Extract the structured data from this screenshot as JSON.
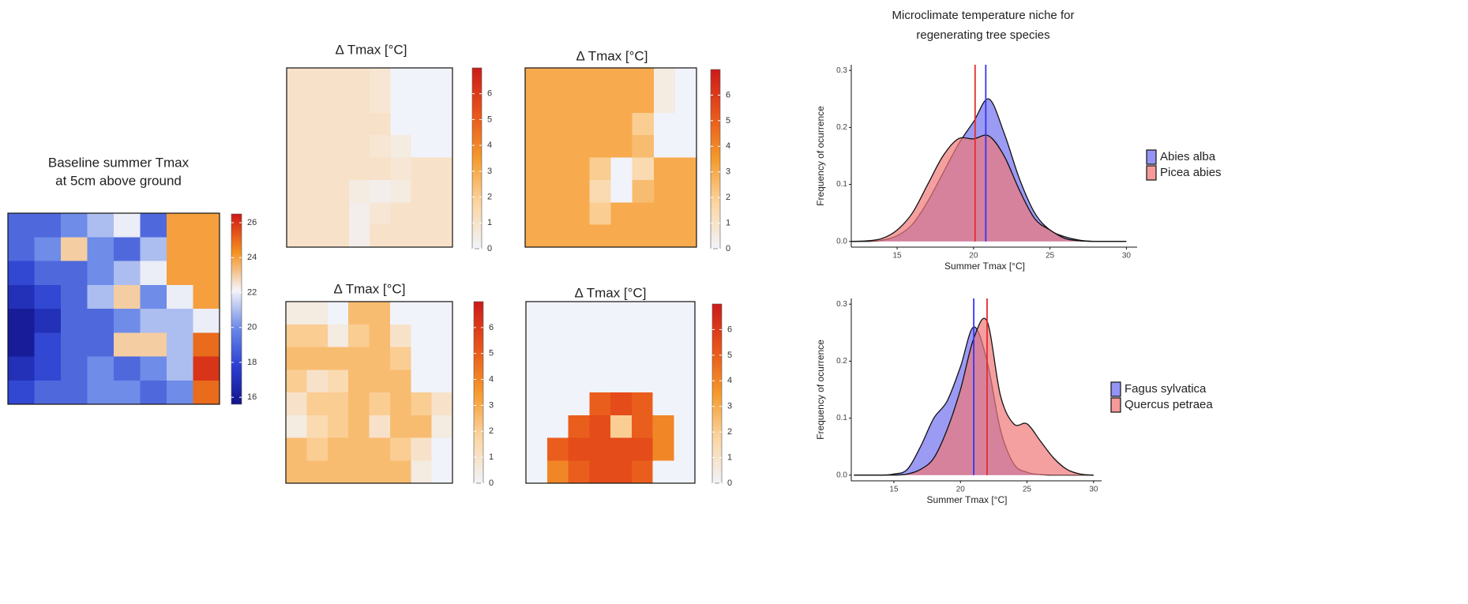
{
  "chart_data": [
    {
      "type": "heatmap",
      "title": [
        "Baseline summer Tmax",
        "at 5cm above ground"
      ],
      "z": [
        [
          19,
          19,
          20,
          21,
          22,
          19,
          24,
          24
        ],
        [
          19,
          20,
          23,
          20,
          19,
          21,
          24,
          24
        ],
        [
          18,
          19,
          19,
          20,
          21,
          22,
          24,
          24
        ],
        [
          17,
          18,
          19,
          21,
          23,
          20,
          22,
          24
        ],
        [
          16,
          17,
          19,
          19,
          20,
          21,
          21,
          22
        ],
        [
          16,
          18,
          19,
          19,
          23,
          23,
          21,
          25
        ],
        [
          17,
          18,
          19,
          20,
          19,
          20,
          21,
          26
        ],
        [
          18,
          19,
          19,
          20,
          20,
          19,
          20,
          25
        ]
      ],
      "zlim": [
        15.6,
        26.5
      ],
      "zticks": [
        16,
        18,
        20,
        22,
        24,
        26
      ],
      "colorscale": [
        "#14148c",
        "#2c3fd0",
        "#6b8ae8",
        "#f4f4f8",
        "#f5901e",
        "#d01818"
      ]
    },
    {
      "type": "heatmap",
      "title": "Δ Tmax [°C]",
      "z": [
        [
          1,
          1,
          1,
          1,
          0.8,
          0,
          0,
          0
        ],
        [
          1,
          1,
          1,
          1,
          0.8,
          0,
          0,
          0
        ],
        [
          1,
          1,
          1,
          1,
          1,
          0,
          0,
          0
        ],
        [
          1,
          1,
          1,
          1,
          0.8,
          0.5,
          0,
          0
        ],
        [
          1,
          1,
          1,
          1,
          1,
          0.8,
          1,
          1
        ],
        [
          1,
          1,
          1,
          0.5,
          0.3,
          0.5,
          1,
          1
        ],
        [
          1,
          1,
          1,
          0.3,
          0.8,
          1,
          1,
          1
        ],
        [
          1,
          1,
          1,
          0.3,
          1,
          1,
          1,
          1
        ]
      ],
      "zlim": [
        0,
        7
      ],
      "zticks": [
        0,
        1,
        2,
        3,
        4,
        5,
        6
      ],
      "colorscale": [
        "#f1f3fa",
        "#fbd6a4",
        "#f59a2c",
        "#e8541a",
        "#cc1a1a"
      ]
    },
    {
      "type": "heatmap",
      "title": "Δ Tmax [°C]",
      "z": [
        [
          3,
          3,
          3,
          3,
          3,
          3,
          0.5,
          0
        ],
        [
          3,
          3,
          3,
          3,
          3,
          3,
          0.5,
          0
        ],
        [
          3,
          3,
          3,
          3,
          3,
          2,
          0,
          0
        ],
        [
          3,
          3,
          3,
          3,
          3,
          2.5,
          0,
          0
        ],
        [
          3,
          3,
          3,
          2,
          0,
          1.5,
          3,
          3
        ],
        [
          3,
          3,
          3,
          1.5,
          0,
          2.5,
          3,
          3
        ],
        [
          3,
          3,
          3,
          2,
          3,
          3,
          3,
          3
        ],
        [
          3,
          3,
          3,
          3,
          3,
          3,
          3,
          3
        ]
      ],
      "zlim": [
        0,
        7
      ],
      "zticks": [
        0,
        1,
        2,
        3,
        4,
        5,
        6
      ],
      "colorscale": [
        "#f1f3fa",
        "#fbd6a4",
        "#f59a2c",
        "#e8541a",
        "#cc1a1a"
      ]
    },
    {
      "type": "heatmap",
      "title": "Δ Tmax [°C]",
      "z": [
        [
          0.5,
          0.5,
          0,
          2.5,
          2.5,
          0,
          0,
          0
        ],
        [
          2,
          2,
          0.5,
          2,
          2.5,
          1,
          0,
          0
        ],
        [
          2.5,
          2.5,
          2.5,
          2.5,
          2.5,
          2,
          0,
          0
        ],
        [
          2,
          1,
          1.5,
          2.5,
          2.5,
          2.5,
          0,
          0
        ],
        [
          1,
          2,
          2,
          2.5,
          2,
          2.5,
          2,
          1
        ],
        [
          0.5,
          1.5,
          2,
          2.5,
          1,
          2.5,
          2.5,
          0.5
        ],
        [
          2.5,
          2,
          2.5,
          2.5,
          2.5,
          2,
          1,
          0
        ],
        [
          2.5,
          2.5,
          2.5,
          2.5,
          2.5,
          2.5,
          0.5,
          0
        ]
      ],
      "zlim": [
        0,
        7
      ],
      "zticks": [
        0,
        1,
        2,
        3,
        4,
        5,
        6
      ],
      "colorscale": [
        "#f1f3fa",
        "#fbd6a4",
        "#f59a2c",
        "#e8541a",
        "#cc1a1a"
      ]
    },
    {
      "type": "heatmap",
      "title": "Δ Tmax [°C]",
      "z": [
        [
          0,
          0,
          0,
          0,
          0,
          0,
          0,
          0
        ],
        [
          0,
          0,
          0,
          0,
          0,
          0,
          0,
          0
        ],
        [
          0,
          0,
          0,
          0,
          0,
          0,
          0,
          0
        ],
        [
          0,
          0,
          0,
          0,
          0,
          0,
          0,
          0
        ],
        [
          0,
          0,
          0,
          5,
          5.5,
          5,
          0,
          0
        ],
        [
          0,
          0,
          5,
          5.5,
          2,
          5,
          4,
          0
        ],
        [
          0,
          5,
          5.5,
          5.5,
          5.5,
          5.5,
          4,
          0
        ],
        [
          0,
          4,
          5,
          5.5,
          5.5,
          5,
          0,
          0
        ]
      ],
      "zlim": [
        0,
        7
      ],
      "zticks": [
        0,
        1,
        2,
        3,
        4,
        5,
        6
      ],
      "colorscale": [
        "#f1f3fa",
        "#fbd6a4",
        "#f59a2c",
        "#e8541a",
        "#cc1a1a"
      ]
    },
    {
      "type": "density",
      "title": [
        "Microclimate temperature niche for",
        "regenerating tree species"
      ],
      "x": [
        12,
        13,
        14,
        15,
        16,
        17,
        18,
        19,
        20,
        21,
        22,
        23,
        24,
        25,
        26,
        27,
        28,
        29,
        30
      ],
      "series": [
        {
          "name": "Abies alba",
          "color": "#7070f0",
          "line_color": "#3535f0",
          "mean": 20.8,
          "values": [
            0,
            0,
            0.002,
            0.01,
            0.03,
            0.07,
            0.12,
            0.17,
            0.21,
            0.25,
            0.19,
            0.11,
            0.05,
            0.02,
            0.008,
            0.002,
            0,
            0,
            0
          ]
        },
        {
          "name": "Picea abies",
          "color": "#f07878",
          "line_color": "#e82a2a",
          "mean": 20.1,
          "values": [
            0,
            0.001,
            0.005,
            0.02,
            0.05,
            0.1,
            0.15,
            0.18,
            0.18,
            0.185,
            0.15,
            0.09,
            0.04,
            0.02,
            0.005,
            0.001,
            0,
            0,
            0
          ]
        }
      ],
      "xlim": [
        12,
        30.7
      ],
      "xticks": [
        15,
        20,
        25,
        30
      ],
      "ylim": [
        -0.01,
        0.31
      ],
      "yticks": [
        {
          "value": 0,
          "label": "0.0"
        },
        0.1,
        0.2,
        0.3
      ],
      "xlabel": "Summer Tmax [°C]",
      "ylabel": "Frequency of ocurrence",
      "legend": "right"
    },
    {
      "type": "density",
      "x": [
        12,
        13,
        14,
        15,
        16,
        17,
        18,
        19,
        20,
        21,
        22,
        23,
        24,
        25,
        26,
        27,
        28,
        29,
        30
      ],
      "series": [
        {
          "name": "Fagus sylvatica",
          "color": "#7070f0",
          "line_color": "#3535f0",
          "mean": 21.0,
          "values": [
            0,
            0,
            0,
            0.002,
            0.01,
            0.05,
            0.1,
            0.13,
            0.19,
            0.26,
            0.2,
            0.08,
            0.02,
            0.005,
            0.001,
            0,
            0,
            0,
            0
          ]
        },
        {
          "name": "Quercus petraea",
          "color": "#f07878",
          "line_color": "#e82a2a",
          "mean": 22.0,
          "values": [
            0,
            0,
            0,
            0,
            0.002,
            0.01,
            0.03,
            0.08,
            0.15,
            0.24,
            0.27,
            0.14,
            0.09,
            0.09,
            0.06,
            0.03,
            0.01,
            0.002,
            0
          ]
        }
      ],
      "xlim": [
        11.8,
        30.6
      ],
      "xticks": [
        15,
        20,
        25,
        30
      ],
      "ylim": [
        -0.01,
        0.31
      ],
      "yticks": [
        {
          "value": 0,
          "label": "0.0"
        },
        0.1,
        0.2,
        0.3
      ],
      "xlabel": "Summer Tmax [°C]",
      "ylabel": "Frequency of ocurrence",
      "legend": "right"
    }
  ]
}
